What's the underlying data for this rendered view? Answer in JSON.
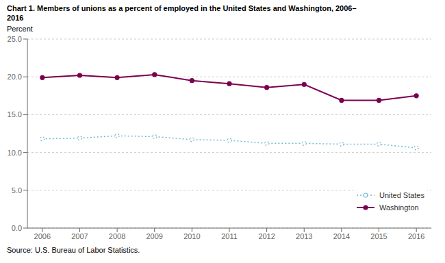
{
  "chart_data": {
    "type": "line",
    "title": "Chart 1. Members of unions as a percent of employed in the United States and Washington, 2006–\n2016",
    "ylabel": "Percent",
    "annotations": [
      "Source: U.S. Bureau of Labor Statistics."
    ],
    "x": [
      2006,
      2007,
      2008,
      2009,
      2010,
      2011,
      2012,
      2013,
      2014,
      2015,
      2016
    ],
    "xlim": [
      2005.6,
      2016.4
    ],
    "xticks": [
      2006,
      2007,
      2008,
      2009,
      2010,
      2011,
      2012,
      2013,
      2014,
      2015,
      2016
    ],
    "ylim": [
      0,
      25.0
    ],
    "yticks": [
      {
        "value": 0.0,
        "label": "0.0"
      },
      {
        "value": 5.0,
        "label": "5.0"
      },
      {
        "value": 10.0,
        "label": "10.0"
      },
      {
        "value": 15.0,
        "label": "15.0"
      },
      {
        "value": 20.0,
        "label": "20.0"
      },
      {
        "value": 25.0,
        "label": "25.0"
      }
    ],
    "grid": "y",
    "legend": "lower right",
    "series": [
      {
        "name": "United States",
        "color": "#70b8d4",
        "marker": "circle",
        "line_style": "dotted",
        "values": [
          11.8,
          11.9,
          12.2,
          12.1,
          11.7,
          11.6,
          11.2,
          11.2,
          11.1,
          11.1,
          10.6
        ]
      },
      {
        "name": "Washington",
        "color": "#7b0050",
        "marker": "circle",
        "line_style": "solid",
        "values": [
          19.9,
          20.2,
          19.9,
          20.3,
          19.5,
          19.1,
          18.6,
          19.0,
          16.9,
          16.9,
          17.5
        ]
      }
    ]
  }
}
